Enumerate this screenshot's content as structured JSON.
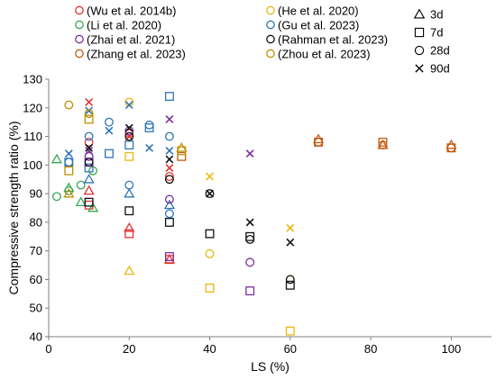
{
  "chart_data": {
    "type": "scatter",
    "title": "",
    "xlabel": "LS (%)",
    "ylabel": "Compressive strength ratio (%)",
    "xlim": [
      0,
      110
    ],
    "ylim": [
      40,
      130
    ],
    "xticks": [
      0,
      20,
      40,
      60,
      80,
      100
    ],
    "yticks": [
      40,
      50,
      60,
      70,
      80,
      90,
      100,
      110,
      120,
      130
    ],
    "grid": false,
    "legend_position": "top",
    "series": [
      {
        "name": "(Wu et al. 2014b)",
        "color": "#e03232",
        "points": [
          {
            "x": 10,
            "y": 91,
            "age": "3d"
          },
          {
            "x": 20,
            "y": 78,
            "age": "3d"
          },
          {
            "x": 30,
            "y": 67,
            "age": "3d"
          },
          {
            "x": 10,
            "y": 86,
            "age": "7d"
          },
          {
            "x": 20,
            "y": 76,
            "age": "7d"
          },
          {
            "x": 30,
            "y": 67,
            "age": "7d"
          },
          {
            "x": 10,
            "y": 108,
            "age": "28d"
          },
          {
            "x": 20,
            "y": 111,
            "age": "28d"
          },
          {
            "x": 30,
            "y": 96,
            "age": "28d"
          },
          {
            "x": 10,
            "y": 122,
            "age": "90d"
          },
          {
            "x": 20,
            "y": 110,
            "age": "90d"
          },
          {
            "x": 30,
            "y": 99,
            "age": "90d"
          }
        ]
      },
      {
        "name": "(He et al. 2020)",
        "color": "#e8b90e",
        "points": [
          {
            "x": 20,
            "y": 63,
            "age": "3d"
          },
          {
            "x": 40,
            "y": 57,
            "age": "7d"
          },
          {
            "x": 60,
            "y": 42,
            "age": "7d"
          },
          {
            "x": 20,
            "y": 103,
            "age": "7d"
          },
          {
            "x": 40,
            "y": 69,
            "age": "28d"
          },
          {
            "x": 60,
            "y": 60,
            "age": "28d"
          },
          {
            "x": 20,
            "y": 122,
            "age": "28d"
          },
          {
            "x": 40,
            "y": 96,
            "age": "90d"
          },
          {
            "x": 60,
            "y": 78,
            "age": "90d"
          }
        ]
      },
      {
        "name": "(Li et al. 2020)",
        "color": "#34a853",
        "points": [
          {
            "x": 2,
            "y": 102,
            "age": "3d"
          },
          {
            "x": 5,
            "y": 92,
            "age": "3d"
          },
          {
            "x": 8,
            "y": 87,
            "age": "3d"
          },
          {
            "x": 11,
            "y": 85,
            "age": "3d"
          },
          {
            "x": 2,
            "y": 89,
            "age": "28d"
          },
          {
            "x": 5,
            "y": 91,
            "age": "28d"
          },
          {
            "x": 8,
            "y": 93,
            "age": "28d"
          },
          {
            "x": 11,
            "y": 98,
            "age": "28d"
          }
        ]
      },
      {
        "name": "(Gu et al. 2023)",
        "color": "#2e75b6",
        "points": [
          {
            "x": 10,
            "y": 95,
            "age": "3d"
          },
          {
            "x": 20,
            "y": 90,
            "age": "3d"
          },
          {
            "x": 30,
            "y": 86,
            "age": "3d"
          },
          {
            "x": 5,
            "y": 101,
            "age": "7d"
          },
          {
            "x": 10,
            "y": 99,
            "age": "7d"
          },
          {
            "x": 15,
            "y": 104,
            "age": "7d"
          },
          {
            "x": 20,
            "y": 107,
            "age": "7d"
          },
          {
            "x": 25,
            "y": 113,
            "age": "7d"
          },
          {
            "x": 30,
            "y": 124,
            "age": "7d"
          },
          {
            "x": 5,
            "y": 101,
            "age": "28d"
          },
          {
            "x": 10,
            "y": 110,
            "age": "28d"
          },
          {
            "x": 15,
            "y": 115,
            "age": "28d"
          },
          {
            "x": 20,
            "y": 93,
            "age": "28d"
          },
          {
            "x": 25,
            "y": 114,
            "age": "28d"
          },
          {
            "x": 30,
            "y": 110,
            "age": "28d"
          },
          {
            "x": 30,
            "y": 83,
            "age": "28d"
          },
          {
            "x": 5,
            "y": 104,
            "age": "90d"
          },
          {
            "x": 10,
            "y": 119,
            "age": "90d"
          },
          {
            "x": 15,
            "y": 112,
            "age": "90d"
          },
          {
            "x": 20,
            "y": 121,
            "age": "90d"
          },
          {
            "x": 25,
            "y": 106,
            "age": "90d"
          },
          {
            "x": 30,
            "y": 105,
            "age": "90d"
          }
        ]
      },
      {
        "name": "(Zhai et al. 2021)",
        "color": "#7b2fa0",
        "points": [
          {
            "x": 10,
            "y": 103,
            "age": "28d"
          },
          {
            "x": 20,
            "y": 112,
            "age": "28d"
          },
          {
            "x": 30,
            "y": 88,
            "age": "28d"
          },
          {
            "x": 50,
            "y": 66,
            "age": "28d"
          },
          {
            "x": 10,
            "y": 101,
            "age": "7d"
          },
          {
            "x": 30,
            "y": 68,
            "age": "7d"
          },
          {
            "x": 50,
            "y": 56,
            "age": "7d"
          },
          {
            "x": 10,
            "y": 105,
            "age": "90d"
          },
          {
            "x": 30,
            "y": 116,
            "age": "90d"
          },
          {
            "x": 50,
            "y": 104,
            "age": "90d"
          }
        ]
      },
      {
        "name": "(Rahman et al. 2023)",
        "color": "#111111",
        "points": [
          {
            "x": 10,
            "y": 87,
            "age": "7d"
          },
          {
            "x": 20,
            "y": 84,
            "age": "7d"
          },
          {
            "x": 30,
            "y": 80,
            "age": "7d"
          },
          {
            "x": 40,
            "y": 76,
            "age": "7d"
          },
          {
            "x": 50,
            "y": 75,
            "age": "7d"
          },
          {
            "x": 60,
            "y": 58,
            "age": "7d"
          },
          {
            "x": 10,
            "y": 101,
            "age": "28d"
          },
          {
            "x": 20,
            "y": 110,
            "age": "28d"
          },
          {
            "x": 30,
            "y": 95,
            "age": "28d"
          },
          {
            "x": 40,
            "y": 90,
            "age": "28d"
          },
          {
            "x": 50,
            "y": 74,
            "age": "28d"
          },
          {
            "x": 60,
            "y": 60,
            "age": "28d"
          },
          {
            "x": 10,
            "y": 106,
            "age": "90d"
          },
          {
            "x": 20,
            "y": 113,
            "age": "90d"
          },
          {
            "x": 30,
            "y": 102,
            "age": "90d"
          },
          {
            "x": 40,
            "y": 90,
            "age": "90d"
          },
          {
            "x": 50,
            "y": 80,
            "age": "90d"
          },
          {
            "x": 60,
            "y": 73,
            "age": "90d"
          }
        ]
      },
      {
        "name": "(Zhang et al. 2023)",
        "color": "#c55a11",
        "points": [
          {
            "x": 67,
            "y": 109,
            "age": "3d"
          },
          {
            "x": 83,
            "y": 107,
            "age": "3d"
          },
          {
            "x": 100,
            "y": 107,
            "age": "3d"
          },
          {
            "x": 33,
            "y": 103,
            "age": "7d"
          },
          {
            "x": 67,
            "y": 108,
            "age": "7d"
          },
          {
            "x": 83,
            "y": 108,
            "age": "7d"
          },
          {
            "x": 100,
            "y": 106,
            "age": "7d"
          },
          {
            "x": 67,
            "y": 108,
            "age": "28d"
          },
          {
            "x": 83,
            "y": 107,
            "age": "28d"
          },
          {
            "x": 100,
            "y": 106,
            "age": "28d"
          }
        ]
      },
      {
        "name": "(Zhou et al. 2023)",
        "color": "#bf9000",
        "points": [
          {
            "x": 5,
            "y": 121,
            "age": "28d"
          },
          {
            "x": 10,
            "y": 118,
            "age": "28d"
          },
          {
            "x": 5,
            "y": 90,
            "age": "3d"
          },
          {
            "x": 33,
            "y": 106,
            "age": "3d"
          },
          {
            "x": 5,
            "y": 98,
            "age": "7d"
          },
          {
            "x": 10,
            "y": 116,
            "age": "7d"
          },
          {
            "x": 33,
            "y": 105,
            "age": "7d"
          }
        ]
      }
    ],
    "marker_legend": [
      {
        "age": "3d",
        "label": "3d",
        "symbol": "triangle"
      },
      {
        "age": "7d",
        "label": "7d",
        "symbol": "square"
      },
      {
        "age": "28d",
        "label": "28d",
        "symbol": "circle"
      },
      {
        "age": "90d",
        "label": "90d",
        "symbol": "cross"
      }
    ]
  }
}
